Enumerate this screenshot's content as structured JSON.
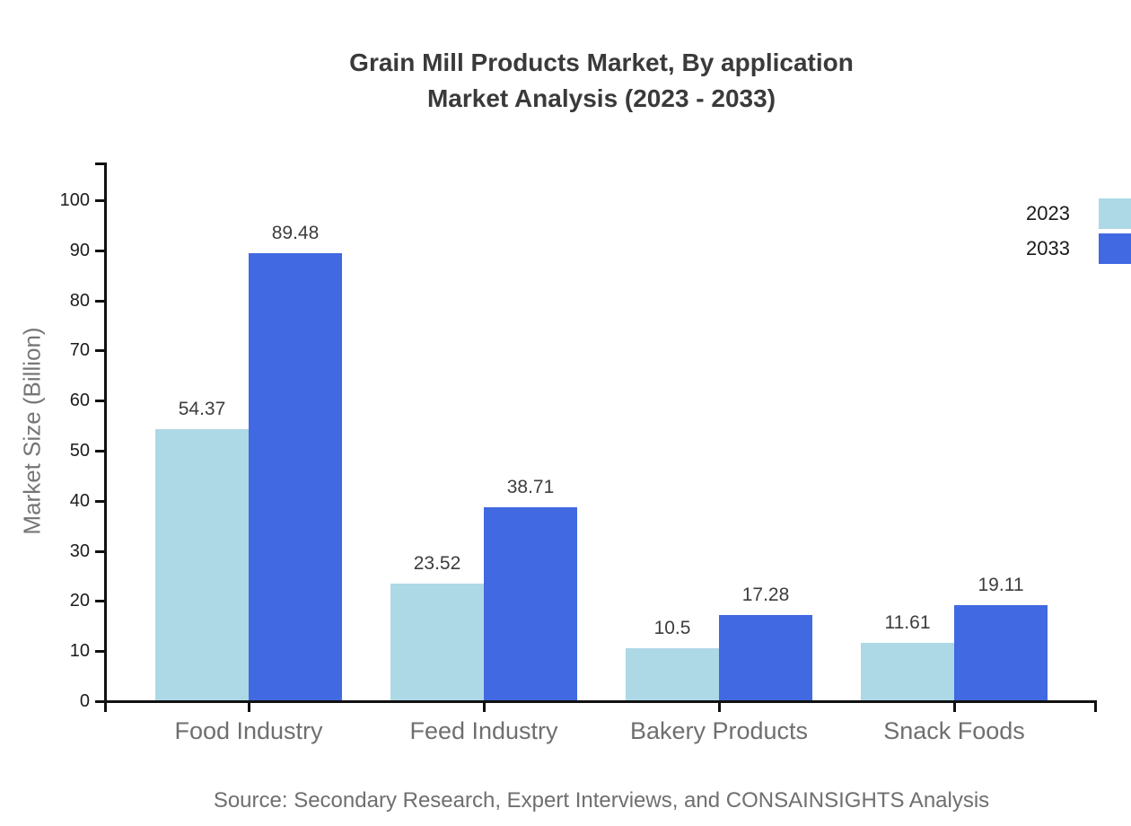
{
  "title": {
    "line1": "Grain Mill Products Market, By application",
    "line2": "Market Analysis (2023 - 2033)"
  },
  "source": "Source: Secondary Research, Expert Interviews, and CONSAINSIGHTS Analysis",
  "chart_data": {
    "type": "bar",
    "categories": [
      "Food Industry",
      "Feed Industry",
      "Bakery Products",
      "Snack Foods"
    ],
    "series": [
      {
        "name": "2023",
        "color": "#ADD8E6",
        "values": [
          54.37,
          23.52,
          10.5,
          11.61
        ]
      },
      {
        "name": "2033",
        "color": "#4169E1",
        "values": [
          89.48,
          38.71,
          17.28,
          19.11
        ]
      }
    ],
    "value_labels": [
      "54.37",
      "23.52",
      "10.5",
      "11.61",
      "89.48",
      "38.71",
      "17.28",
      "19.11"
    ],
    "ylabel": "Market Size (Billion)",
    "ylim": [
      0,
      100
    ],
    "yticks": [
      0,
      10,
      20,
      30,
      40,
      50,
      60,
      70,
      80,
      90,
      100
    ],
    "grid": false,
    "legend_position": "top-right",
    "axis_color": "#111111"
  }
}
